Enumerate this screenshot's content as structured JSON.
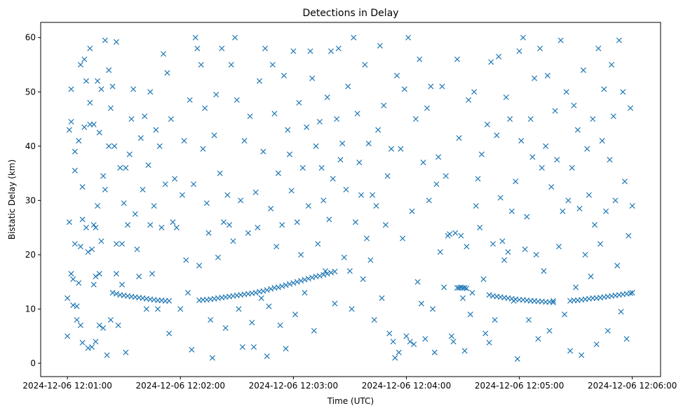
{
  "chart_data": {
    "type": "scatter",
    "title": "Detections in Delay",
    "xlabel": "Time (UTC)",
    "ylabel": "Bistatic Delay (km)",
    "x_unit": "seconds after 2024-12-06 12:00:00",
    "xlim": [
      45.8,
      375
    ],
    "ylim": [
      -2.45,
      62.8
    ],
    "grid": false,
    "marker": "x",
    "color": "#1f77b4",
    "xticks": [
      {
        "value": 60,
        "label": "2024-12-06 12:01:00"
      },
      {
        "value": 120,
        "label": "2024-12-06 12:02:00"
      },
      {
        "value": 180,
        "label": "2024-12-06 12:03:00"
      },
      {
        "value": 240,
        "label": "2024-12-06 12:04:00"
      },
      {
        "value": 300,
        "label": "2024-12-06 12:05:00"
      },
      {
        "value": 360,
        "label": "2024-12-06 12:06:00"
      }
    ],
    "yticks": [
      {
        "value": 0,
        "label": "0"
      },
      {
        "value": 10,
        "label": "10"
      },
      {
        "value": 20,
        "label": "20"
      },
      {
        "value": 30,
        "label": "30"
      },
      {
        "value": 40,
        "label": "40"
      },
      {
        "value": 50,
        "label": "50"
      },
      {
        "value": 60,
        "label": "60"
      }
    ],
    "tracks": [
      {
        "x": [
          84,
          86,
          88,
          90,
          92,
          94,
          96,
          98,
          100,
          102,
          104,
          106,
          108,
          110,
          112,
          114
        ],
        "y": [
          13.0,
          12.8,
          12.6,
          12.5,
          12.4,
          12.3,
          12.2,
          12.1,
          12.0,
          11.9,
          11.8,
          11.7,
          11.6,
          11.6,
          11.5,
          11.5
        ]
      },
      {
        "x": [
          130,
          132,
          134,
          136,
          138,
          140,
          142,
          144,
          146,
          148,
          150,
          152,
          154,
          156,
          158,
          160,
          162,
          164,
          166,
          168,
          170,
          172,
          174,
          176,
          178,
          180,
          182,
          184,
          186,
          188,
          190,
          192,
          194,
          196,
          198,
          200,
          202
        ],
        "y": [
          11.6,
          11.7,
          11.7,
          11.8,
          11.9,
          12.0,
          12.1,
          12.2,
          12.3,
          12.4,
          12.5,
          12.6,
          12.7,
          12.8,
          12.9,
          13.0,
          13.2,
          13.3,
          13.5,
          13.7,
          13.9,
          14.0,
          14.2,
          14.4,
          14.6,
          14.8,
          15.0,
          15.2,
          15.4,
          15.6,
          15.8,
          16.0,
          16.1,
          16.3,
          16.5,
          16.7,
          16.9
        ]
      },
      {
        "x": [
          267,
          268,
          269,
          270,
          271,
          272
        ],
        "y": [
          13.9,
          13.9,
          14.0,
          13.9,
          13.9,
          13.8
        ]
      },
      {
        "x": [
          284,
          286,
          288,
          290,
          292,
          294,
          296,
          298,
          300,
          302,
          304,
          306,
          308,
          310,
          312,
          314,
          316,
          318
        ],
        "y": [
          12.6,
          12.4,
          12.3,
          12.2,
          12.1,
          12.0,
          11.9,
          11.8,
          11.7,
          11.7,
          11.6,
          11.5,
          11.5,
          11.4,
          11.4,
          11.3,
          11.3,
          11.2
        ]
      },
      {
        "x": [
          327,
          329,
          331,
          333,
          335,
          337,
          339,
          341,
          343,
          345,
          347,
          349,
          351,
          353,
          355,
          357,
          359,
          360
        ],
        "y": [
          11.5,
          11.6,
          11.6,
          11.7,
          11.8,
          11.9,
          12.0,
          12.0,
          12.1,
          12.2,
          12.3,
          12.4,
          12.5,
          12.6,
          12.7,
          12.8,
          12.9,
          13.0
        ]
      }
    ],
    "noise": [
      [
        60,
        12
      ],
      [
        60,
        5
      ],
      [
        61,
        26
      ],
      [
        61,
        43
      ],
      [
        62,
        16.5
      ],
      [
        62,
        50.5
      ],
      [
        62,
        44.5
      ],
      [
        63,
        15.5
      ],
      [
        63,
        10.7
      ],
      [
        64,
        39
      ],
      [
        64,
        35.5
      ],
      [
        64,
        22
      ],
      [
        65,
        10.5
      ],
      [
        65,
        8
      ],
      [
        66,
        41
      ],
      [
        66,
        14.8
      ],
      [
        67,
        55
      ],
      [
        67,
        7
      ],
      [
        67,
        21.5
      ],
      [
        68,
        3.8
      ],
      [
        68,
        26.5
      ],
      [
        68,
        32.5
      ],
      [
        69,
        43.5
      ],
      [
        69,
        56
      ],
      [
        70,
        25
      ],
      [
        70,
        52
      ],
      [
        71,
        20.5
      ],
      [
        71,
        2.8
      ],
      [
        72,
        44
      ],
      [
        72,
        48
      ],
      [
        72,
        58
      ],
      [
        73,
        21
      ],
      [
        73,
        3
      ],
      [
        74,
        14.5
      ],
      [
        74,
        25.5
      ],
      [
        74,
        44
      ],
      [
        75,
        4
      ],
      [
        75,
        16
      ],
      [
        75,
        25
      ],
      [
        76,
        29
      ],
      [
        76,
        52
      ],
      [
        77,
        7
      ],
      [
        77,
        16.5
      ],
      [
        77,
        42.5
      ],
      [
        78,
        50.5
      ],
      [
        78,
        22.5
      ],
      [
        79,
        34.5
      ],
      [
        79,
        6.5
      ],
      [
        80,
        32
      ],
      [
        80,
        59.5
      ],
      [
        81,
        1.5
      ],
      [
        82,
        40
      ],
      [
        82,
        54
      ],
      [
        83,
        8
      ],
      [
        83,
        47
      ],
      [
        84,
        51
      ],
      [
        85,
        40
      ],
      [
        86,
        16.5
      ],
      [
        86,
        22
      ],
      [
        86,
        59.2
      ],
      [
        87,
        7
      ],
      [
        88,
        36
      ],
      [
        89,
        14.5
      ],
      [
        89,
        22
      ],
      [
        90,
        29.5
      ],
      [
        91,
        2
      ],
      [
        91,
        36
      ],
      [
        92,
        25.5
      ],
      [
        93,
        38.5
      ],
      [
        94,
        45
      ],
      [
        95,
        50.5
      ],
      [
        96,
        27.5
      ],
      [
        97,
        21
      ],
      [
        98,
        16
      ],
      [
        99,
        41.5
      ],
      [
        100,
        32
      ],
      [
        101,
        45.5
      ],
      [
        102,
        10
      ],
      [
        103,
        36.5
      ],
      [
        104,
        25.5
      ],
      [
        104,
        50
      ],
      [
        105,
        16.5
      ],
      [
        106,
        29
      ],
      [
        107,
        43
      ],
      [
        108,
        10
      ],
      [
        109,
        40
      ],
      [
        110,
        25
      ],
      [
        111,
        57
      ],
      [
        112,
        33
      ],
      [
        113,
        53.5
      ],
      [
        114,
        5.5
      ],
      [
        115,
        45
      ],
      [
        116,
        26
      ],
      [
        117,
        34
      ],
      [
        118,
        25
      ],
      [
        120,
        10
      ],
      [
        121,
        31
      ],
      [
        122,
        41
      ],
      [
        123,
        19
      ],
      [
        124,
        13
      ],
      [
        125,
        48.5
      ],
      [
        126,
        2.5
      ],
      [
        127,
        33
      ],
      [
        128,
        60
      ],
      [
        129,
        58
      ],
      [
        130,
        18
      ],
      [
        131,
        55
      ],
      [
        132,
        39.5
      ],
      [
        133,
        47
      ],
      [
        134,
        29.5
      ],
      [
        135,
        24
      ],
      [
        136,
        8
      ],
      [
        137,
        1
      ],
      [
        138,
        42
      ],
      [
        139,
        49.5
      ],
      [
        140,
        19.5
      ],
      [
        141,
        35
      ],
      [
        142,
        58
      ],
      [
        143,
        26
      ],
      [
        144,
        6.5
      ],
      [
        145,
        31
      ],
      [
        146,
        25.5
      ],
      [
        147,
        55
      ],
      [
        148,
        22.5
      ],
      [
        149,
        60
      ],
      [
        150,
        48.5
      ],
      [
        151,
        10
      ],
      [
        152,
        30
      ],
      [
        153,
        3
      ],
      [
        154,
        41
      ],
      [
        156,
        24
      ],
      [
        157,
        45.5
      ],
      [
        158,
        7.5
      ],
      [
        159,
        3
      ],
      [
        160,
        31.5
      ],
      [
        161,
        25
      ],
      [
        162,
        52
      ],
      [
        163,
        12
      ],
      [
        164,
        39
      ],
      [
        165,
        58
      ],
      [
        166,
        1.3
      ],
      [
        167,
        10.5
      ],
      [
        168,
        28.5
      ],
      [
        169,
        55
      ],
      [
        170,
        46
      ],
      [
        171,
        21.5
      ],
      [
        172,
        35
      ],
      [
        173,
        7
      ],
      [
        174,
        25.5
      ],
      [
        175,
        53
      ],
      [
        176,
        2.7
      ],
      [
        177,
        43
      ],
      [
        178,
        38.5
      ],
      [
        179,
        31.8
      ],
      [
        180,
        57.5
      ],
      [
        181,
        9
      ],
      [
        182,
        26
      ],
      [
        183,
        48
      ],
      [
        184,
        20
      ],
      [
        185,
        36
      ],
      [
        186,
        13
      ],
      [
        187,
        43.5
      ],
      [
        188,
        29
      ],
      [
        189,
        57.5
      ],
      [
        190,
        52.5
      ],
      [
        191,
        6
      ],
      [
        192,
        40
      ],
      [
        193,
        22
      ],
      [
        194,
        44.5
      ],
      [
        195,
        36
      ],
      [
        196,
        30
      ],
      [
        197,
        17
      ],
      [
        198,
        49
      ],
      [
        199,
        26.5
      ],
      [
        200,
        57.5
      ],
      [
        201,
        34
      ],
      [
        202,
        11
      ],
      [
        203,
        45
      ],
      [
        204,
        58
      ],
      [
        205,
        37.5
      ],
      [
        206,
        40.5
      ],
      [
        207,
        19.5
      ],
      [
        208,
        32
      ],
      [
        209,
        51
      ],
      [
        210,
        17
      ],
      [
        211,
        10
      ],
      [
        212,
        60
      ],
      [
        213,
        26
      ],
      [
        214,
        46
      ],
      [
        215,
        37
      ],
      [
        216,
        31
      ],
      [
        217,
        15.5
      ],
      [
        218,
        55
      ],
      [
        219,
        23
      ],
      [
        220,
        40.5
      ],
      [
        221,
        19
      ],
      [
        222,
        31
      ],
      [
        223,
        8
      ],
      [
        224,
        29
      ],
      [
        225,
        43
      ],
      [
        226,
        58.5
      ],
      [
        227,
        12
      ],
      [
        228,
        47.5
      ],
      [
        229,
        25.5
      ],
      [
        230,
        34.5
      ],
      [
        231,
        5.5
      ],
      [
        232,
        39.5
      ],
      [
        233,
        4
      ],
      [
        234,
        1
      ],
      [
        235,
        53
      ],
      [
        236,
        2
      ],
      [
        237,
        39.5
      ],
      [
        238,
        23
      ],
      [
        239,
        50.5
      ],
      [
        240,
        5
      ],
      [
        241,
        60
      ],
      [
        242,
        4
      ],
      [
        243,
        28
      ],
      [
        244,
        3.5
      ],
      [
        245,
        45
      ],
      [
        246,
        15
      ],
      [
        247,
        56
      ],
      [
        248,
        11
      ],
      [
        249,
        37
      ],
      [
        250,
        4.5
      ],
      [
        251,
        47
      ],
      [
        252,
        30
      ],
      [
        253,
        51
      ],
      [
        254,
        10
      ],
      [
        255,
        2
      ],
      [
        256,
        33
      ],
      [
        257,
        38
      ],
      [
        258,
        20.5
      ],
      [
        259,
        51
      ],
      [
        260,
        14
      ],
      [
        261,
        34.5
      ],
      [
        262,
        23.5
      ],
      [
        263,
        23.8
      ],
      [
        264,
        5
      ],
      [
        265,
        4
      ],
      [
        266,
        24
      ],
      [
        267,
        56
      ],
      [
        268,
        41.5
      ],
      [
        269,
        23.5
      ],
      [
        270,
        12
      ],
      [
        271,
        2.3
      ],
      [
        272,
        21.5
      ],
      [
        273,
        48.5
      ],
      [
        274,
        9
      ],
      [
        275,
        13
      ],
      [
        276,
        50
      ],
      [
        277,
        29
      ],
      [
        278,
        34
      ],
      [
        279,
        25
      ],
      [
        280,
        38.5
      ],
      [
        281,
        15.5
      ],
      [
        282,
        5.5
      ],
      [
        283,
        44
      ],
      [
        284,
        3.8
      ],
      [
        285,
        55.5
      ],
      [
        286,
        22
      ],
      [
        287,
        8
      ],
      [
        288,
        42
      ],
      [
        289,
        56.5
      ],
      [
        290,
        30.5
      ],
      [
        291,
        22.5
      ],
      [
        292,
        19
      ],
      [
        293,
        49
      ],
      [
        294,
        20.5
      ],
      [
        295,
        45
      ],
      [
        296,
        28
      ],
      [
        297,
        11.5
      ],
      [
        298,
        33.5
      ],
      [
        299,
        0.8
      ],
      [
        300,
        57.5
      ],
      [
        301,
        41
      ],
      [
        302,
        60
      ],
      [
        303,
        21
      ],
      [
        304,
        27
      ],
      [
        305,
        8
      ],
      [
        306,
        45
      ],
      [
        307,
        38
      ],
      [
        308,
        52.5
      ],
      [
        309,
        20
      ],
      [
        310,
        4.5
      ],
      [
        311,
        58
      ],
      [
        312,
        36
      ],
      [
        313,
        17
      ],
      [
        314,
        40
      ],
      [
        315,
        53
      ],
      [
        316,
        6
      ],
      [
        317,
        32.5
      ],
      [
        318,
        11.5
      ],
      [
        319,
        46.5
      ],
      [
        320,
        37.5
      ],
      [
        321,
        21.5
      ],
      [
        322,
        59.5
      ],
      [
        323,
        28
      ],
      [
        324,
        9
      ],
      [
        325,
        50
      ],
      [
        326,
        30
      ],
      [
        327,
        2.3
      ],
      [
        328,
        36
      ],
      [
        329,
        47.5
      ],
      [
        330,
        14
      ],
      [
        331,
        43
      ],
      [
        332,
        28.5
      ],
      [
        333,
        1.5
      ],
      [
        334,
        54
      ],
      [
        335,
        20
      ],
      [
        336,
        39.5
      ],
      [
        337,
        31
      ],
      [
        338,
        16
      ],
      [
        339,
        45
      ],
      [
        340,
        25.5
      ],
      [
        341,
        3.5
      ],
      [
        342,
        58
      ],
      [
        343,
        22
      ],
      [
        344,
        41
      ],
      [
        345,
        50.5
      ],
      [
        346,
        28
      ],
      [
        347,
        6
      ],
      [
        348,
        37.5
      ],
      [
        349,
        55
      ],
      [
        350,
        45.5
      ],
      [
        351,
        30
      ],
      [
        352,
        18
      ],
      [
        353,
        59.5
      ],
      [
        354,
        9.5
      ],
      [
        355,
        50
      ],
      [
        356,
        33.5
      ],
      [
        357,
        4.5
      ],
      [
        358,
        23.5
      ],
      [
        359,
        47
      ],
      [
        360,
        29
      ]
    ]
  }
}
